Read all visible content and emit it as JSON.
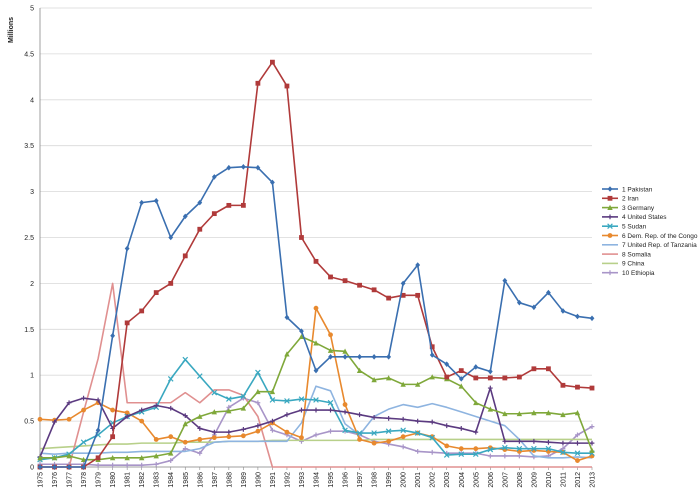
{
  "chart_data": {
    "type": "line",
    "title": "",
    "ylabel": "Millions",
    "xlabel": "",
    "ylim": [
      0,
      5
    ],
    "yticks": [
      "0",
      "0.5",
      "1",
      "1.5",
      "2",
      "2.5",
      "3",
      "3.5",
      "4",
      "4.5",
      "5"
    ],
    "grid": true,
    "legend_position": "right",
    "x": [
      "1975",
      "1976",
      "1977",
      "1978",
      "1979",
      "1980",
      "1981",
      "1982",
      "1983",
      "1984",
      "1985",
      "1986",
      "1987",
      "1988",
      "1989",
      "1990",
      "1991",
      "1992",
      "1993",
      "1994",
      "1995",
      "1996",
      "1997",
      "1998",
      "1999",
      "2000",
      "2001",
      "2002",
      "2003",
      "2004",
      "2005",
      "2006",
      "2007",
      "2008",
      "2009",
      "2010",
      "2011",
      "2012",
      "2013"
    ],
    "series": [
      {
        "name": "1 Pakistan",
        "color": "#3A6FB0",
        "marker": "diamond",
        "values": [
          0,
          0,
          0,
          0,
          0.4,
          1.43,
          2.38,
          2.88,
          2.9,
          2.5,
          2.73,
          2.88,
          3.16,
          3.26,
          3.27,
          3.26,
          3.1,
          1.63,
          1.48,
          1.05,
          1.2,
          1.2,
          1.2,
          1.2,
          1.2,
          2.0,
          2.2,
          1.22,
          1.12,
          0.96,
          1.09,
          1.04,
          2.03,
          1.79,
          1.74,
          1.9,
          1.7,
          1.64,
          1.62
        ]
      },
      {
        "name": "2 Iran",
        "color": "#B03A3A",
        "marker": "square",
        "values": [
          0,
          0,
          0,
          0,
          0.1,
          0.33,
          1.57,
          1.7,
          1.9,
          2.0,
          2.3,
          2.59,
          2.76,
          2.85,
          2.85,
          4.18,
          4.41,
          4.15,
          2.5,
          2.24,
          2.07,
          2.03,
          1.98,
          1.93,
          1.84,
          1.87,
          1.87,
          1.31,
          0.98,
          1.05,
          0.97,
          0.97,
          0.97,
          0.98,
          1.07,
          1.07,
          0.89,
          0.87,
          0.86
        ]
      },
      {
        "name": "3 Germany",
        "color": "#7FA83A",
        "marker": "triangle",
        "values": [
          0.1,
          0.1,
          0.12,
          0.08,
          0.08,
          0.1,
          0.1,
          0.1,
          0.12,
          0.15,
          0.47,
          0.55,
          0.6,
          0.61,
          0.64,
          0.82,
          0.82,
          1.23,
          1.42,
          1.35,
          1.27,
          1.26,
          1.05,
          0.95,
          0.97,
          0.9,
          0.9,
          0.98,
          0.96,
          0.88,
          0.7,
          0.63,
          0.58,
          0.58,
          0.59,
          0.59,
          0.57,
          0.59,
          0.18
        ]
      },
      {
        "name": "4 United States",
        "color": "#5B3A80",
        "marker": "cross",
        "values": [
          0.11,
          0.49,
          0.7,
          0.75,
          0.73,
          0.42,
          0.55,
          0.62,
          0.67,
          0.64,
          0.56,
          0.42,
          0.38,
          0.38,
          0.41,
          0.45,
          0.5,
          0.57,
          0.62,
          0.62,
          0.62,
          0.6,
          0.57,
          0.54,
          0.53,
          0.52,
          0.5,
          0.49,
          0.45,
          0.42,
          0.38,
          0.86,
          0.28,
          0.28,
          0.28,
          0.27,
          0.26,
          0.26,
          0.26
        ]
      },
      {
        "name": "5 Sudan",
        "color": "#3AA8C0",
        "marker": "x",
        "values": [
          0.08,
          0.1,
          0.14,
          0.27,
          0.35,
          0.48,
          0.55,
          0.6,
          0.65,
          0.96,
          1.17,
          0.99,
          0.81,
          0.74,
          0.77,
          1.03,
          0.73,
          0.72,
          0.74,
          0.73,
          0.7,
          0.4,
          0.37,
          0.37,
          0.39,
          0.4,
          0.37,
          0.32,
          0.13,
          0.14,
          0.14,
          0.19,
          0.21,
          0.2,
          0.2,
          0.2,
          0.16,
          0.15,
          0.15
        ]
      },
      {
        "name": "6 Dem. Rep. of the Congo",
        "color": "#E8892E",
        "marker": "circle",
        "values": [
          0.52,
          0.51,
          0.52,
          0.62,
          0.7,
          0.62,
          0.59,
          0.5,
          0.3,
          0.33,
          0.27,
          0.3,
          0.32,
          0.33,
          0.34,
          0.39,
          0.48,
          0.38,
          0.32,
          1.73,
          1.44,
          0.68,
          0.3,
          0.26,
          0.28,
          0.33,
          0.37,
          0.33,
          0.23,
          0.2,
          0.2,
          0.21,
          0.19,
          0.17,
          0.18,
          0.17,
          0.16,
          0.07,
          0.12
        ]
      },
      {
        "name": "7 United Rep. of Tanzania",
        "color": "#8EB4E0",
        "marker": "none",
        "values": [
          0.15,
          0.14,
          0.15,
          0.15,
          0.15,
          0.16,
          0.16,
          0.17,
          0.17,
          0.17,
          0.17,
          0.2,
          0.27,
          0.28,
          0.28,
          0.28,
          0.28,
          0.28,
          0.48,
          0.88,
          0.83,
          0.47,
          0.35,
          0.55,
          0.63,
          0.68,
          0.65,
          0.69,
          0.65,
          0.6,
          0.55,
          0.5,
          0.45,
          0.3,
          0.12,
          0.1,
          0.1,
          0.11,
          0.1
        ]
      },
      {
        "name": "8 Somalia",
        "color": "#E09090",
        "marker": "none",
        "values": [
          0,
          0,
          0,
          0.6,
          1.18,
          2.0,
          0.7,
          0.7,
          0.7,
          0.7,
          0.81,
          0.7,
          0.84,
          0.84,
          0.78,
          0.55,
          0,
          0,
          0,
          0,
          0,
          0,
          0,
          0,
          0,
          0,
          0,
          0,
          0,
          0,
          0,
          0,
          0,
          0,
          0,
          0,
          0,
          0,
          0
        ]
      },
      {
        "name": "9 China",
        "color": "#B8D08A",
        "marker": "none",
        "values": [
          0.2,
          0.21,
          0.22,
          0.23,
          0.24,
          0.25,
          0.25,
          0.26,
          0.26,
          0.26,
          0.27,
          0.27,
          0.27,
          0.28,
          0.28,
          0.28,
          0.29,
          0.29,
          0.29,
          0.29,
          0.29,
          0.29,
          0.29,
          0.3,
          0.3,
          0.3,
          0.3,
          0.3,
          0.3,
          0.3,
          0.3,
          0.3,
          0.3,
          0.3,
          0.3,
          0.3,
          0.3,
          0.3,
          0.3
        ]
      },
      {
        "name": "10 Ethiopia",
        "color": "#A895C8",
        "marker": "cross",
        "values": [
          0.03,
          0.03,
          0.03,
          0.03,
          0.02,
          0.02,
          0.02,
          0.02,
          0.03,
          0.07,
          0.2,
          0.15,
          0.35,
          0.65,
          0.75,
          0.7,
          0.4,
          0.35,
          0.28,
          0.35,
          0.39,
          0.39,
          0.35,
          0.28,
          0.25,
          0.22,
          0.17,
          0.16,
          0.15,
          0.15,
          0.15,
          0.12,
          0.12,
          0.12,
          0.11,
          0.12,
          0.2,
          0.35,
          0.44
        ]
      }
    ]
  }
}
